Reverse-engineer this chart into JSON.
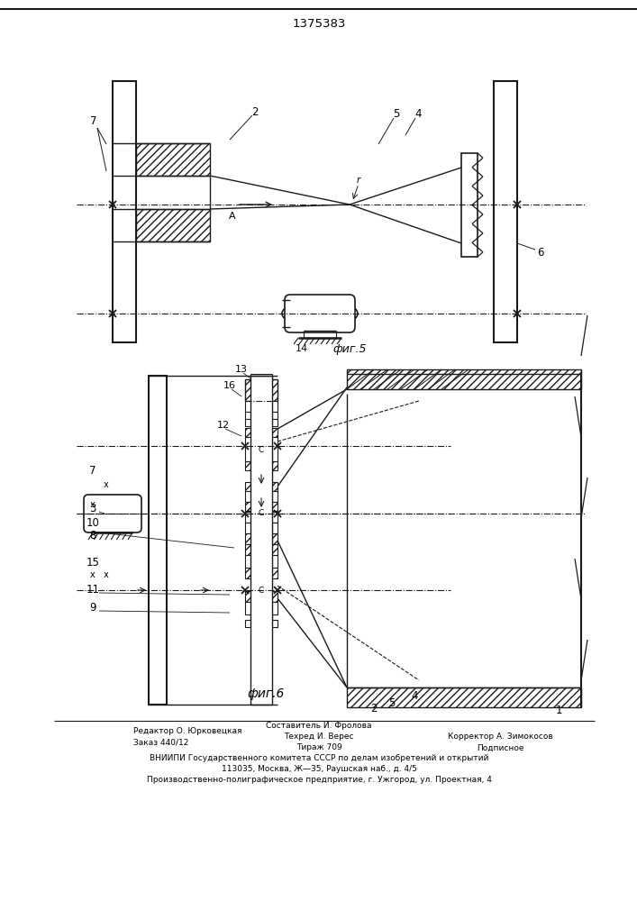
{
  "title": "1375383",
  "fig5_label": "фиг.5",
  "fig6_label": "фиг.6",
  "background": "#ffffff",
  "lc": "#1a1a1a",
  "footer_cols": [
    [
      "Редактор О. Юрковецкая",
      "Заказ 440/12"
    ],
    [
      "Составитель И. Фролова",
      "Техред И. Верес",
      "Тираж 709"
    ],
    [
      "Корректор А. Зимокосов",
      "Подписное"
    ]
  ],
  "footer_full": [
    "ВНИИПИ Государственного комитета СССР по делам изобретений и открытий",
    "113035, Москва, Ж—35, Раушская наб., д. 4/5",
    "Производственно-полиграфическое предприятие, г. Ужгород, ул. Проектная, 4"
  ]
}
